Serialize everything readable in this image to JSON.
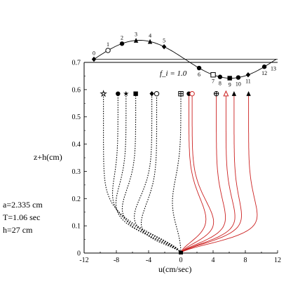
{
  "chart_data": {
    "type": "line",
    "xlabel": "u(cm/sec)",
    "ylabel": "z+h(cm)",
    "xlim": [
      -12,
      12
    ],
    "ylim": [
      0,
      0.7
    ],
    "xticks": [
      "-12",
      "-8",
      "-4",
      "0",
      "4",
      "8",
      "12"
    ],
    "yticks": [
      "0",
      "0.1",
      "0.2",
      "0.3",
      "0.4",
      "0.5",
      "0.6",
      "0.7"
    ],
    "grid": false,
    "annotations": {
      "fi_label": "f_i = 1.0",
      "params": [
        "a=2.335 cm",
        "T=1.06 sec",
        "h=27 cm"
      ]
    },
    "phase_indicator": {
      "phases": [
        {
          "label": "0",
          "phase": 0.0,
          "marker": "diamond"
        },
        {
          "label": "1",
          "phase": 0.077,
          "marker": "circle-open"
        },
        {
          "label": "2",
          "phase": 0.154,
          "marker": "circle"
        },
        {
          "label": "3",
          "phase": 0.231,
          "marker": "triangle"
        },
        {
          "label": "4",
          "phase": 0.308,
          "marker": "triangle"
        },
        {
          "label": "5",
          "phase": 0.385,
          "marker": "diamond"
        },
        {
          "label": "6",
          "phase": 0.577,
          "marker": "circle"
        },
        {
          "label": "7",
          "phase": 0.654,
          "marker": "square-open"
        },
        {
          "label": "8",
          "phase": 0.692,
          "marker": "circle"
        },
        {
          "label": "9",
          "phase": 0.745,
          "marker": "square"
        },
        {
          "label": "10",
          "phase": 0.792,
          "marker": "circle"
        },
        {
          "label": "11",
          "phase": 0.846,
          "marker": "diamond"
        },
        {
          "label": "12",
          "phase": 0.935,
          "marker": "circle"
        },
        {
          "label": "13",
          "phase": 1.16,
          "marker": "none"
        }
      ]
    },
    "series": [
      {
        "phase": "0",
        "style": "dotted",
        "marker": "star-open",
        "u_top": -9.6,
        "u_min": -9.6,
        "z_min": 0.16
      },
      {
        "phase": "1",
        "style": "dotted",
        "marker": "circle",
        "u_top": -7.8,
        "u_min": -9.0,
        "z_min": 0.14
      },
      {
        "phase": "2",
        "style": "dotted",
        "marker": "star",
        "u_top": -6.8,
        "u_min": -8.6,
        "z_min": 0.12
      },
      {
        "phase": "3",
        "style": "dotted",
        "marker": "square",
        "u_top": -5.6,
        "u_min": -7.8,
        "z_min": 0.11
      },
      {
        "phase": "4",
        "style": "dotted",
        "marker": "diamond",
        "u_top": -3.6,
        "u_min": -6.2,
        "z_min": 0.09
      },
      {
        "phase": "5",
        "style": "dotted",
        "marker": "circle-open",
        "u_top": -3.0,
        "u_min": -5.2,
        "z_min": 0.07
      },
      {
        "phase": "6",
        "style": "dotted",
        "marker": "square-cross",
        "u_top": 0.0,
        "u_min": -1.2,
        "z_min": 0.16
      },
      {
        "phase": "7",
        "style": "solid",
        "marker": "circle",
        "u_top": 1.0,
        "u_min": 3.4,
        "z_min": 0.09
      },
      {
        "phase": "8",
        "style": "solid",
        "marker": "circle-open",
        "u_top": 1.4,
        "u_min": 4.4,
        "z_min": 0.08
      },
      {
        "phase": "9",
        "style": "solid",
        "marker": "circle-cross",
        "u_top": 4.4,
        "u_min": 5.8,
        "z_min": 0.08
      },
      {
        "phase": "10",
        "style": "solid",
        "marker": "triangle-open",
        "u_top": 5.6,
        "u_min": 7.0,
        "z_min": 0.08
      },
      {
        "phase": "11",
        "style": "solid",
        "marker": "triangle",
        "u_top": 6.6,
        "u_min": 7.8,
        "z_min": 0.08
      },
      {
        "phase": "12",
        "style": "solid",
        "marker": "triangle",
        "u_top": 8.4,
        "u_min": 9.8,
        "z_min": 0.08
      }
    ]
  }
}
